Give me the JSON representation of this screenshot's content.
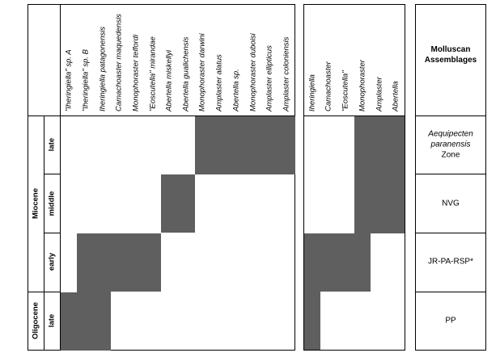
{
  "chronostratigraphy": {
    "epochs": [
      "Oligocene",
      "Miocene"
    ],
    "oligocene_subdivisions": [
      "late"
    ],
    "miocene_subdivisions": [
      "early",
      "middle",
      "late"
    ]
  },
  "species_columns": [
    "\"Iheringiella\" sp. A",
    "\"Iheringiella\" sp. B",
    "Iheringiella patagonensis",
    "Camachoaster maquedensis",
    "Monophoraster telfordi",
    "\"Eoscutella\" mirandae",
    "Abertella miskellyi",
    "Abertella gualichensis",
    "Monophoraster darwini",
    "Amplaster alatus",
    "Abertella sp.",
    "Monophoraster duboisi",
    "Amplaster ellipticus",
    "Amplaster coloniensis"
  ],
  "genus_columns": [
    "Iheringiella",
    "Camachoaster",
    "\"Eoscutella\"",
    "Monophoraster",
    "Amplaster",
    "Abertella"
  ],
  "molluscan": {
    "header": "Molluscan Assemblages",
    "late_miocene_line1": "Aequipecten",
    "late_miocene_line2": "paranensis",
    "late_miocene_line3": "Zone",
    "middle_miocene": "NVG",
    "early_miocene": "JR-PA-RSP*",
    "late_oligocene": "PP"
  },
  "shade_color": "#5f5f5f"
}
